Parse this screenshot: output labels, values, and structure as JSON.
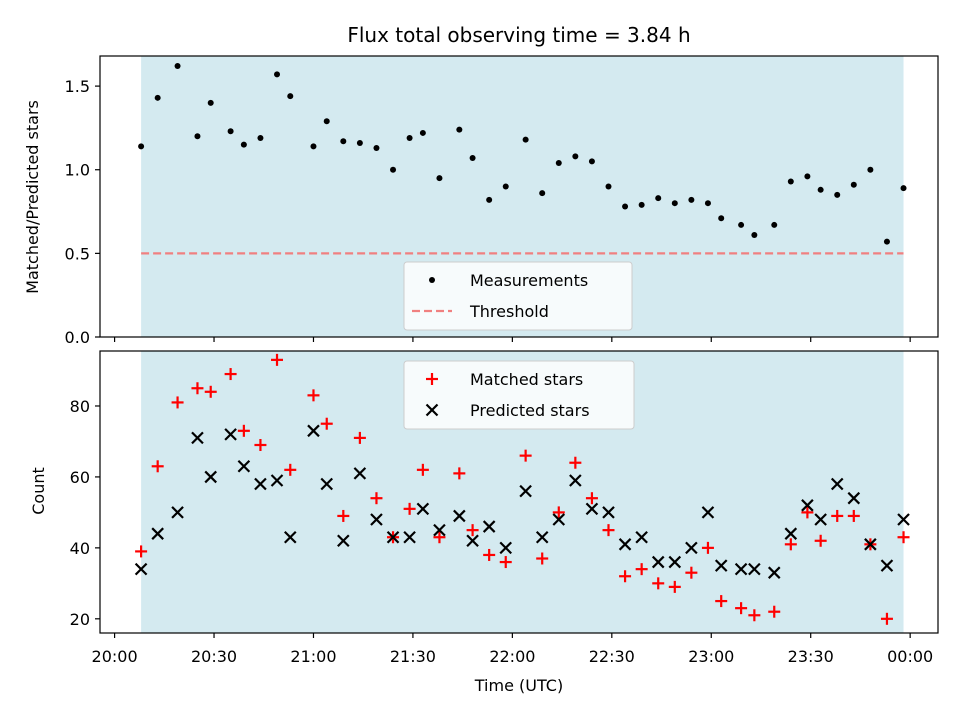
{
  "chart_data": [
    {
      "type": "scatter",
      "title": "Flux total observing time = 3.84 h",
      "ylabel": "Matched/Predicted stars",
      "xlabel": "",
      "ylim": [
        0.0,
        1.68
      ],
      "yticks": [
        "0.0",
        "0.5",
        "1.0",
        "1.5"
      ],
      "shaded_span": [
        "20:08",
        "23:58"
      ],
      "shade_color": "#d4eaf0",
      "legend_position": "lower center",
      "series": [
        {
          "name": "Measurements",
          "color": "#000000",
          "marker": "dot",
          "x": [
            "20:08",
            "20:13",
            "20:19",
            "20:25",
            "20:29",
            "20:35",
            "20:39",
            "20:44",
            "20:49",
            "20:53",
            "21:00",
            "21:04",
            "21:09",
            "21:14",
            "21:19",
            "21:24",
            "21:29",
            "21:33",
            "21:38",
            "21:44",
            "21:48",
            "21:53",
            "21:58",
            "22:04",
            "22:09",
            "22:14",
            "22:19",
            "22:24",
            "22:29",
            "22:34",
            "22:39",
            "22:44",
            "22:49",
            "22:54",
            "22:59",
            "23:03",
            "23:09",
            "23:13",
            "23:19",
            "23:24",
            "23:29",
            "23:33",
            "23:38",
            "23:43",
            "23:48",
            "23:53",
            "23:58"
          ],
          "y": [
            1.14,
            1.43,
            1.62,
            1.2,
            1.4,
            1.23,
            1.15,
            1.19,
            1.57,
            1.44,
            1.14,
            1.29,
            1.17,
            1.16,
            1.13,
            1.0,
            1.19,
            1.22,
            0.95,
            1.24,
            1.07,
            0.82,
            0.9,
            1.18,
            0.86,
            1.04,
            1.08,
            1.05,
            0.9,
            0.78,
            0.79,
            0.83,
            0.8,
            0.82,
            0.8,
            0.71,
            0.67,
            0.61,
            0.67,
            0.93,
            0.96,
            0.88,
            0.85,
            0.91,
            1.0,
            0.57,
            0.89
          ]
        },
        {
          "name": "Threshold",
          "color": "#f08080",
          "style": "dashed",
          "x": [
            "20:08",
            "23:58"
          ],
          "y": [
            0.5,
            0.5
          ]
        }
      ]
    },
    {
      "type": "scatter",
      "ylabel": "Count",
      "xlabel": "Time (UTC)",
      "ylim": [
        16,
        95.5
      ],
      "yticks": [
        "20",
        "40",
        "60",
        "80"
      ],
      "xticks": [
        "20:00",
        "20:30",
        "21:00",
        "21:30",
        "22:00",
        "22:30",
        "23:00",
        "23:30",
        "00:00"
      ],
      "shaded_span": [
        "20:08",
        "23:58"
      ],
      "shade_color": "#d4eaf0",
      "legend_position": "upper center",
      "series": [
        {
          "name": "Matched stars",
          "color": "#ff0000",
          "marker": "plus",
          "x": [
            "20:08",
            "20:13",
            "20:19",
            "20:25",
            "20:29",
            "20:35",
            "20:39",
            "20:44",
            "20:49",
            "20:53",
            "21:00",
            "21:04",
            "21:09",
            "21:14",
            "21:19",
            "21:24",
            "21:29",
            "21:33",
            "21:38",
            "21:44",
            "21:48",
            "21:53",
            "21:58",
            "22:04",
            "22:09",
            "22:14",
            "22:19",
            "22:24",
            "22:29",
            "22:34",
            "22:39",
            "22:44",
            "22:49",
            "22:54",
            "22:59",
            "23:03",
            "23:09",
            "23:13",
            "23:19",
            "23:24",
            "23:29",
            "23:33",
            "23:38",
            "23:43",
            "23:48",
            "23:53",
            "23:58"
          ],
          "y": [
            39,
            63,
            81,
            85,
            84,
            89,
            73,
            69,
            93,
            62,
            83,
            75,
            49,
            71,
            54,
            43,
            51,
            62,
            43,
            61,
            45,
            38,
            36,
            66,
            37,
            50,
            64,
            54,
            45,
            32,
            34,
            30,
            29,
            33,
            40,
            25,
            23,
            21,
            22,
            41,
            50,
            42,
            49,
            49,
            41,
            20,
            43
          ]
        },
        {
          "name": "Predicted stars",
          "color": "#000000",
          "marker": "x",
          "x": [
            "20:08",
            "20:13",
            "20:19",
            "20:25",
            "20:29",
            "20:35",
            "20:39",
            "20:44",
            "20:49",
            "20:53",
            "21:00",
            "21:04",
            "21:09",
            "21:14",
            "21:19",
            "21:24",
            "21:29",
            "21:33",
            "21:38",
            "21:44",
            "21:48",
            "21:53",
            "21:58",
            "22:04",
            "22:09",
            "22:14",
            "22:19",
            "22:24",
            "22:29",
            "22:34",
            "22:39",
            "22:44",
            "22:49",
            "22:54",
            "22:59",
            "23:03",
            "23:09",
            "23:13",
            "23:19",
            "23:24",
            "23:29",
            "23:33",
            "23:38",
            "23:43",
            "23:48",
            "23:53",
            "23:58"
          ],
          "y": [
            34,
            44,
            50,
            71,
            60,
            72,
            63,
            58,
            59,
            43,
            73,
            58,
            42,
            61,
            48,
            43,
            43,
            51,
            45,
            49,
            42,
            46,
            40,
            56,
            43,
            48,
            59,
            51,
            50,
            41,
            43,
            36,
            36,
            40,
            50,
            35,
            34,
            34,
            33,
            44,
            52,
            48,
            58,
            54,
            41,
            35,
            48
          ]
        }
      ]
    }
  ]
}
